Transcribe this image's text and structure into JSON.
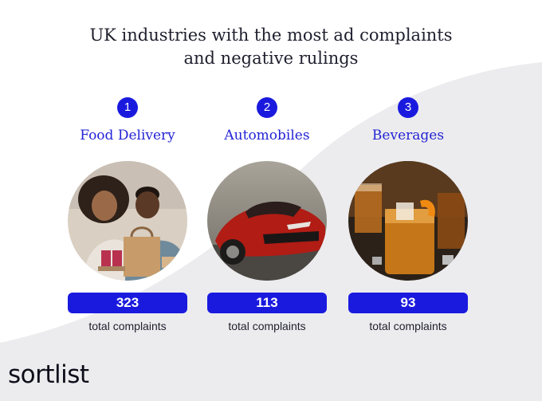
{
  "title": {
    "line1": "UK industries with the most ad complaints",
    "line2": "and negative rulings"
  },
  "industries": [
    {
      "rank": "1",
      "name": "Food Delivery",
      "count": "323",
      "caption": "total complaints",
      "image": "couple-with-food-delivery-photo"
    },
    {
      "rank": "2",
      "name": "Automobiles",
      "count": "113",
      "caption": "total complaints",
      "image": "red-car-photo"
    },
    {
      "rank": "3",
      "name": "Beverages",
      "count": "93",
      "caption": "total complaints",
      "image": "whiskey-cocktails-photo"
    }
  ],
  "logo": "sortlist",
  "colors": {
    "accent": "#1a1adf",
    "name_text": "#2424d6",
    "wave": "#ececee"
  }
}
